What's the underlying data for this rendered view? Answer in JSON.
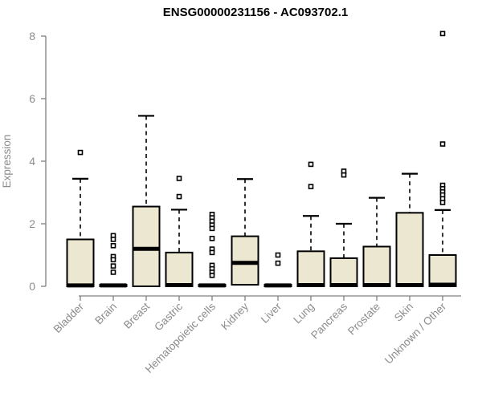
{
  "title": "ENSG00000231156 - AC093702.1",
  "colors": {
    "box_fill": "#ece7d0",
    "box_stroke": "#000000",
    "axis": "#808080",
    "tick_label": "#8c8c8c",
    "title": "#000000",
    "background": "#ffffff"
  },
  "chart_data": {
    "type": "boxplot",
    "title": "ENSG00000231156 - AC093702.1",
    "xlabel": "",
    "ylabel": "Expression",
    "ylim": [
      0,
      8
    ],
    "yticks": [
      0,
      2,
      4,
      6,
      8
    ],
    "grid": false,
    "legend": "none",
    "categories": [
      "Bladder",
      "Brain",
      "Breast",
      "Gastric",
      "Hematopoietic cells",
      "Kidney",
      "Liver",
      "Lung",
      "Pancreas",
      "Prostate",
      "Skin",
      "Unknown / Other"
    ],
    "series": [
      {
        "name": "Bladder",
        "slug": "bladder",
        "whisker_low": 0,
        "q1": 0,
        "median": 0.03,
        "q3": 1.5,
        "whisker_high": 3.44,
        "outliers": [
          4.28
        ]
      },
      {
        "name": "Brain",
        "slug": "brain",
        "whisker_low": 0,
        "q1": 0,
        "median": 0.03,
        "q3": 0.05,
        "whisker_high": 0.05,
        "outliers": [
          1.62,
          1.5,
          1.3,
          0.95,
          0.85,
          0.65,
          0.45
        ]
      },
      {
        "name": "Breast",
        "slug": "breast",
        "whisker_low": 0,
        "q1": 0,
        "median": 1.2,
        "q3": 2.55,
        "whisker_high": 5.45,
        "outliers": []
      },
      {
        "name": "Gastric",
        "slug": "gastric",
        "whisker_low": 0,
        "q1": 0,
        "median": 0.04,
        "q3": 1.08,
        "whisker_high": 2.45,
        "outliers": [
          3.45,
          2.87
        ]
      },
      {
        "name": "Hematopoietic cells",
        "slug": "hematopoietic-cells",
        "whisker_low": 0,
        "q1": 0,
        "median": 0.03,
        "q3": 0.05,
        "whisker_high": 0.05,
        "outliers": [
          2.3,
          2.19,
          2.08,
          1.96,
          1.85,
          1.53,
          1.19,
          1.08,
          0.67,
          0.56,
          0.45,
          0.35
        ]
      },
      {
        "name": "Kidney",
        "slug": "kidney",
        "whisker_low": 0.05,
        "q1": 0.05,
        "median": 0.75,
        "q3": 1.6,
        "whisker_high": 3.43,
        "outliers": []
      },
      {
        "name": "Liver",
        "slug": "liver",
        "whisker_low": 0,
        "q1": 0,
        "median": 0.03,
        "q3": 0.05,
        "whisker_high": 0.05,
        "outliers": [
          1.0,
          0.74
        ]
      },
      {
        "name": "Lung",
        "slug": "lung",
        "whisker_low": 0,
        "q1": 0,
        "median": 0.04,
        "q3": 1.12,
        "whisker_high": 2.25,
        "outliers": [
          3.9,
          3.19
        ]
      },
      {
        "name": "Pancreas",
        "slug": "pancreas",
        "whisker_low": 0,
        "q1": 0,
        "median": 0.04,
        "q3": 0.9,
        "whisker_high": 2.0,
        "outliers": [
          3.68,
          3.56
        ]
      },
      {
        "name": "Prostate",
        "slug": "prostate",
        "whisker_low": 0,
        "q1": 0,
        "median": 0.04,
        "q3": 1.27,
        "whisker_high": 2.83,
        "outliers": []
      },
      {
        "name": "Skin",
        "slug": "skin",
        "whisker_low": 0,
        "q1": 0,
        "median": 0.04,
        "q3": 2.35,
        "whisker_high": 3.6,
        "outliers": []
      },
      {
        "name": "Unknown / Other",
        "slug": "unknown-other",
        "whisker_low": 0,
        "q1": 0,
        "median": 0.05,
        "q3": 1.0,
        "whisker_high": 2.44,
        "outliers": [
          8.08,
          4.55,
          3.23,
          3.12,
          3.02,
          2.92,
          2.8,
          2.68
        ]
      }
    ]
  }
}
